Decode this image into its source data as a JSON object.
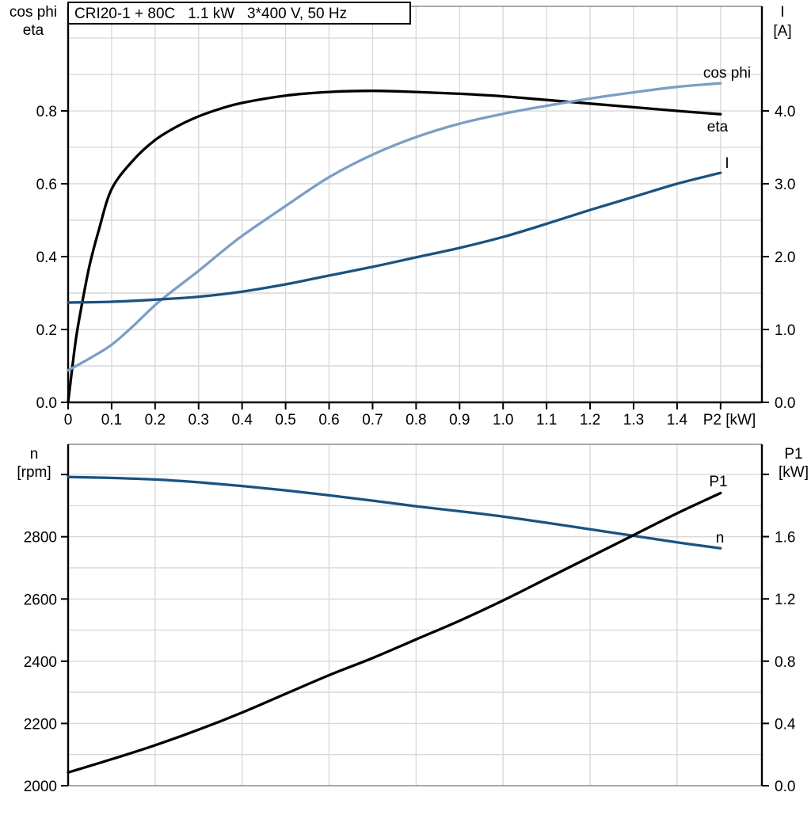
{
  "header": {
    "title": "CRI20-1 + 80C   1.1 kW   3*400 V, 50 Hz"
  },
  "colors": {
    "black": "#000000",
    "light_blue": "#7C9EC5",
    "dark_blue": "#1B5280",
    "grid": "#D9D9D9",
    "frame": "#8C8C8C"
  },
  "chart_data": [
    {
      "type": "line",
      "title": "Motor efficiency, power factor and current vs shaft power",
      "x_axis": {
        "label": "P2 [kW]",
        "min": 0,
        "max": 1.595,
        "ticks": [
          0,
          0.1,
          0.2,
          0.3,
          0.4,
          0.5,
          0.6,
          0.7,
          0.8,
          0.9,
          1.0,
          1.1,
          1.2,
          1.3,
          1.4,
          1.5
        ],
        "tick_labels": [
          "0",
          "0.1",
          "0.2",
          "0.3",
          "0.4",
          "0.5",
          "0.6",
          "0.7",
          "0.8",
          "0.9",
          "1.0",
          "1.1",
          "1.2",
          "1.3",
          "1.4",
          ""
        ],
        "grid": [
          0.1,
          0.2,
          0.3,
          0.4,
          0.5,
          0.6,
          0.7,
          0.8,
          0.9,
          1.0,
          1.1,
          1.2,
          1.3,
          1.4,
          1.5
        ]
      },
      "y_left": {
        "title_line1": "cos phi",
        "title_line2": "eta",
        "min": 0,
        "max": 1.087,
        "ticks": [
          0,
          0.2,
          0.4,
          0.6,
          0.8
        ],
        "tick_labels": [
          "0.0",
          "0.2",
          "0.4",
          "0.6",
          "0.8"
        ],
        "grid": [
          0.1,
          0.2,
          0.3,
          0.4,
          0.5,
          0.6,
          0.7,
          0.8,
          0.9,
          1.0
        ]
      },
      "y_right": {
        "title_line1": "I",
        "title_line2": "[A]",
        "min": 0,
        "max": 5.435,
        "ticks": [
          0,
          1,
          2,
          3,
          4
        ],
        "tick_labels": [
          "0.0",
          "1.0",
          "2.0",
          "3.0",
          "4.0"
        ]
      },
      "series": [
        {
          "name": "eta",
          "label": "eta",
          "axis": "left",
          "color_key": "black",
          "x": [
            0,
            0.01,
            0.02,
            0.035,
            0.05,
            0.07,
            0.1,
            0.15,
            0.2,
            0.25,
            0.3,
            0.35,
            0.4,
            0.5,
            0.6,
            0.7,
            0.8,
            0.9,
            1.0,
            1.1,
            1.2,
            1.3,
            1.4,
            1.5
          ],
          "y": [
            0,
            0.1,
            0.19,
            0.29,
            0.38,
            0.47,
            0.585,
            0.665,
            0.72,
            0.757,
            0.785,
            0.806,
            0.822,
            0.842,
            0.852,
            0.855,
            0.852,
            0.847,
            0.84,
            0.83,
            0.82,
            0.81,
            0.8,
            0.791
          ]
        },
        {
          "name": "cos_phi",
          "label": "cos phi",
          "axis": "left",
          "color_key": "light_blue",
          "x": [
            0,
            0.05,
            0.1,
            0.15,
            0.2,
            0.25,
            0.3,
            0.35,
            0.4,
            0.5,
            0.6,
            0.7,
            0.8,
            0.9,
            1.0,
            1.1,
            1.2,
            1.3,
            1.4,
            1.5
          ],
          "y": [
            0.088,
            0.121,
            0.158,
            0.21,
            0.267,
            0.315,
            0.361,
            0.41,
            0.457,
            0.539,
            0.618,
            0.68,
            0.728,
            0.765,
            0.792,
            0.814,
            0.834,
            0.851,
            0.866,
            0.876
          ]
        },
        {
          "name": "current",
          "label": "I",
          "axis": "right",
          "color_key": "dark_blue",
          "x": [
            0,
            0.1,
            0.2,
            0.3,
            0.4,
            0.5,
            0.6,
            0.7,
            0.8,
            0.9,
            1.0,
            1.1,
            1.2,
            1.3,
            1.4,
            1.5
          ],
          "y": [
            1.37,
            1.38,
            1.41,
            1.45,
            1.52,
            1.62,
            1.74,
            1.86,
            1.99,
            2.12,
            2.27,
            2.45,
            2.64,
            2.82,
            3.0,
            3.15
          ]
        }
      ]
    },
    {
      "type": "line",
      "title": "Speed and input power vs shaft power",
      "x_axis": {
        "label": "",
        "min": 0,
        "max": 1.595,
        "ticks": [],
        "tick_labels": [],
        "grid": [
          0.2,
          0.4,
          0.6,
          0.8,
          1.0,
          1.2,
          1.4
        ]
      },
      "y_left": {
        "title_line1": "n",
        "title_line2": "[rpm]",
        "min": 2000,
        "max": 3097,
        "ticks": [
          2000,
          2200,
          2400,
          2600,
          2800,
          3000
        ],
        "tick_labels": [
          "2000",
          "2200",
          "2400",
          "2600",
          "2800",
          ""
        ],
        "grid": [
          2100,
          2200,
          2300,
          2400,
          2500,
          2600,
          2700,
          2800,
          2900,
          3000
        ]
      },
      "y_right": {
        "title_line1": "P1",
        "title_line2": "[kW]",
        "min": 0,
        "max": 2.193,
        "ticks": [
          0,
          0.4,
          0.8,
          1.2,
          1.6,
          2.0
        ],
        "tick_labels": [
          "0.0",
          "0.4",
          "0.8",
          "1.2",
          "1.6",
          ""
        ]
      },
      "series": [
        {
          "name": "speed",
          "label": "n",
          "axis": "left",
          "color_key": "dark_blue",
          "x": [
            0,
            0.1,
            0.2,
            0.3,
            0.4,
            0.5,
            0.6,
            0.7,
            0.8,
            0.9,
            1.0,
            1.1,
            1.2,
            1.3,
            1.4,
            1.5
          ],
          "y": [
            2992,
            2989,
            2984,
            2975,
            2963,
            2949,
            2933,
            2916,
            2898,
            2882,
            2865,
            2845,
            2824,
            2803,
            2782,
            2763
          ]
        },
        {
          "name": "p1",
          "label": "P1",
          "axis": "right",
          "color_key": "black",
          "x": [
            0,
            0.1,
            0.2,
            0.3,
            0.4,
            0.5,
            0.6,
            0.7,
            0.8,
            0.9,
            1.0,
            1.1,
            1.2,
            1.3,
            1.4,
            1.5
          ],
          "y": [
            0.085,
            0.17,
            0.26,
            0.36,
            0.47,
            0.59,
            0.71,
            0.82,
            0.94,
            1.06,
            1.19,
            1.33,
            1.47,
            1.61,
            1.75,
            1.88
          ]
        }
      ]
    }
  ]
}
